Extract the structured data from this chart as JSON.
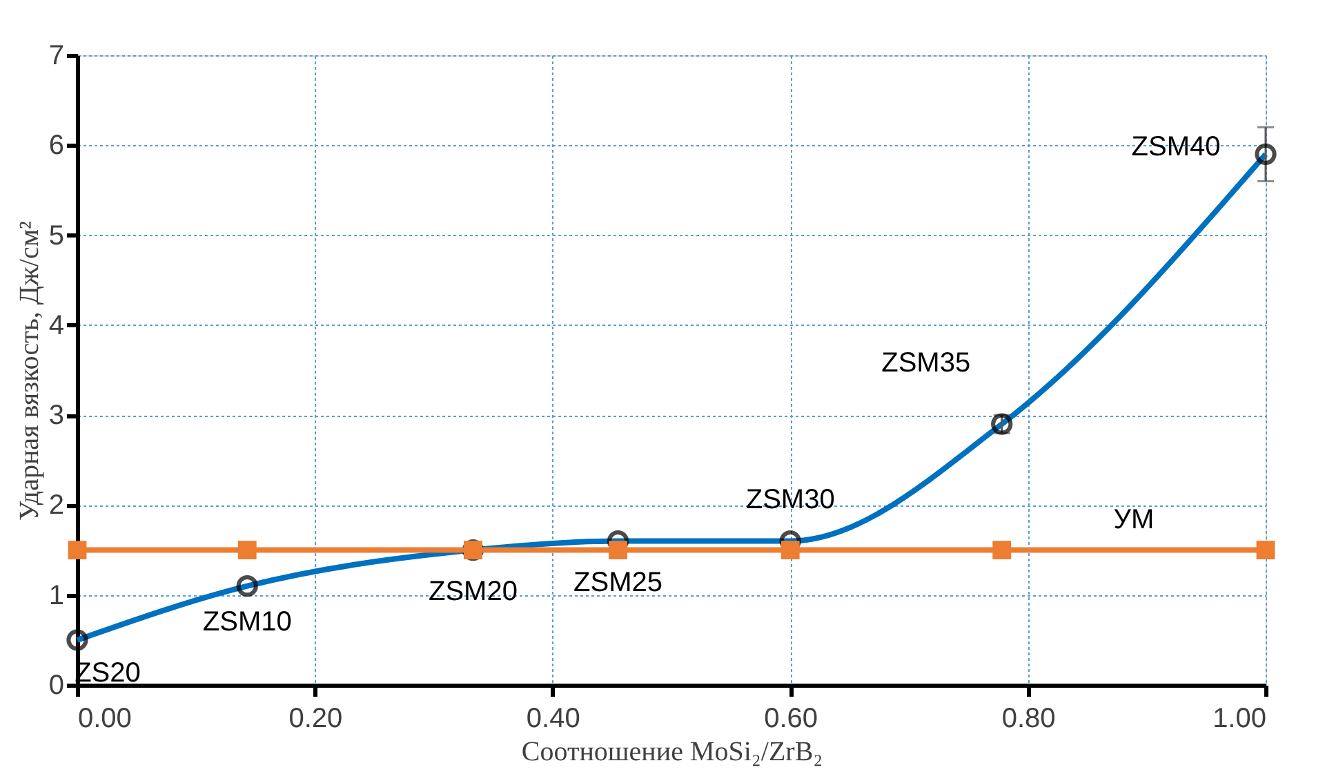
{
  "chart_data": {
    "type": "line",
    "xlabel": "Соотношение MoSi₂/ZrB₂",
    "ylabel": "Ударная вязкость, Дж/см²",
    "series": [
      {
        "color": "#0070c0",
        "marker": "circle",
        "x": [
          0,
          0.143,
          0.333,
          0.455,
          0.6,
          0.778,
          1.0
        ],
        "values": [
          0.5,
          1.1,
          1.5,
          1.6,
          1.6,
          2.9,
          5.9
        ],
        "errors": [
          null,
          null,
          null,
          null,
          null,
          0.1,
          0.3
        ]
      },
      {
        "name": "УМ",
        "color": "#ed7d31",
        "marker": "square",
        "x": [
          0,
          0.143,
          0.333,
          0.455,
          0.6,
          0.778,
          1.0
        ],
        "values": [
          1.5,
          1.5,
          1.5,
          1.5,
          1.5,
          1.5,
          1.5
        ]
      }
    ],
    "annotations": [
      {
        "text": "ZS20",
        "x": 0,
        "y": 0.5
      },
      {
        "text": "ZSM10",
        "x": 0.143,
        "y": 1.1
      },
      {
        "text": "ZSM20",
        "x": 0.333,
        "y": 1.5
      },
      {
        "text": "ZSM25",
        "x": 0.455,
        "y": 1.6
      },
      {
        "text": "ZSM30",
        "x": 0.6,
        "y": 1.6
      },
      {
        "text": "ZSM35",
        "x": 0.778,
        "y": 2.9
      },
      {
        "text": "ZSM40",
        "x": 1.0,
        "y": 5.9
      }
    ],
    "xlim": [
      0,
      1.0
    ],
    "ylim": [
      0,
      7
    ],
    "xticks": [
      {
        "value": 0,
        "label": "0.00"
      },
      {
        "value": 0.2,
        "label": "0.20"
      },
      {
        "value": 0.4,
        "label": "0.40"
      },
      {
        "value": 0.6,
        "label": "0.60"
      },
      {
        "value": 0.8,
        "label": "0.80"
      },
      {
        "value": 1.0,
        "label": "1.00"
      }
    ],
    "yticks": [
      0,
      1,
      2,
      3,
      4,
      5,
      6,
      7
    ],
    "grid": true
  }
}
